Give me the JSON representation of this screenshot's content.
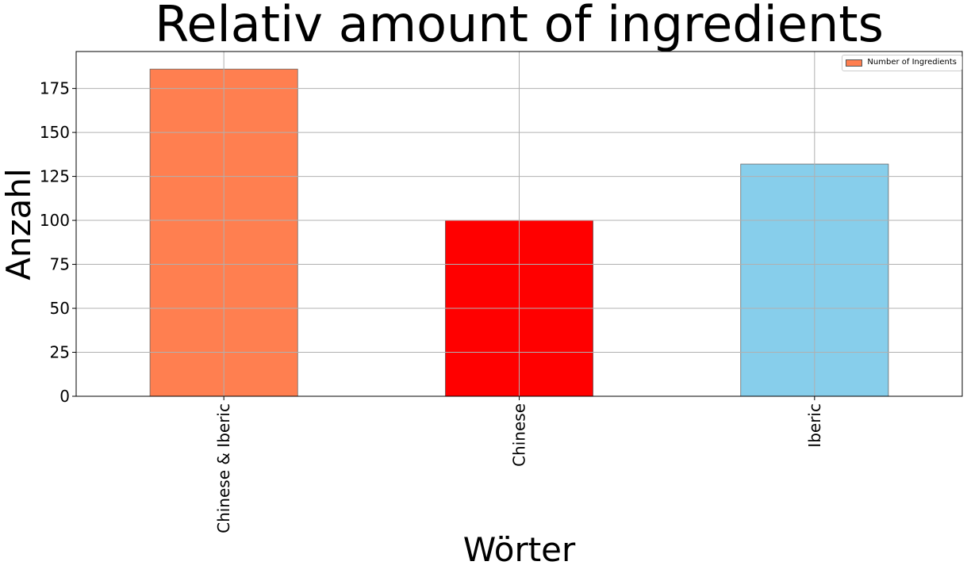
{
  "chart_data": {
    "type": "bar",
    "title": "Relativ amount of ingredients",
    "xlabel": "Wörter",
    "ylabel": "Anzahl",
    "categories": [
      "Chinese & Iberic",
      "Chinese",
      "Iberic"
    ],
    "series": [
      {
        "name": "Number of Ingredients",
        "values": [
          186,
          100,
          132
        ]
      }
    ],
    "bar_colors": [
      "#ff7f50",
      "#ff0000",
      "#87ceeb"
    ],
    "legend_color": "#ff7f50",
    "ylim": [
      0,
      196
    ],
    "yticks": [
      0,
      25,
      50,
      75,
      100,
      125,
      150,
      175
    ],
    "grid": true,
    "legend_position": "top-right",
    "xtick_rotation": 90
  }
}
